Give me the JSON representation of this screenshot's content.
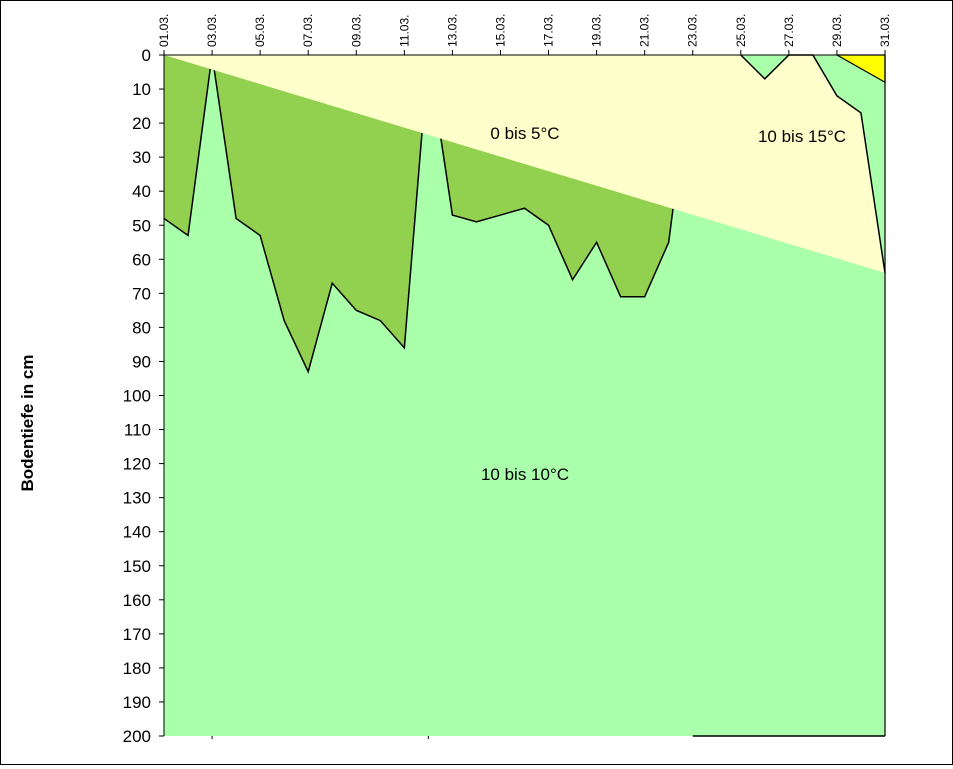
{
  "chart_data": {
    "type": "area",
    "title": "",
    "xlabel": "",
    "ylabel": "Bodentiefe in cm",
    "ylim": [
      0,
      200
    ],
    "y_inverted": true,
    "y_ticks": [
      0,
      10,
      20,
      30,
      40,
      50,
      60,
      70,
      80,
      90,
      100,
      110,
      120,
      130,
      140,
      150,
      160,
      170,
      180,
      190,
      200
    ],
    "x_tick_labels": [
      "01.03.",
      "03.03.",
      "05.03.",
      "07.03.",
      "09.03.",
      "11.03.",
      "13.03.",
      "15.03.",
      "17.03.",
      "19.03.",
      "21.03.",
      "23.03.",
      "25.03.",
      "27.03.",
      "29.03.",
      "31.03."
    ],
    "days": [
      1,
      2,
      3,
      4,
      5,
      6,
      7,
      8,
      9,
      10,
      11,
      12,
      13,
      14,
      15,
      16,
      17,
      18,
      19,
      20,
      21,
      22,
      23,
      24,
      25,
      26,
      27,
      28,
      29,
      30,
      31
    ],
    "grid": false,
    "legend": "none",
    "series": [
      {
        "label": "0 bis 5°C",
        "color": "#92d050",
        "values": [
          48,
          53,
          0,
          48,
          53,
          78,
          93,
          67,
          75,
          78,
          86,
          0,
          47,
          49,
          47,
          45,
          50,
          66,
          55,
          71,
          71,
          55,
          0,
          0,
          0,
          0,
          0,
          0,
          0,
          0,
          0
        ]
      },
      {
        "label": "10 bis 10°C",
        "color": "#aaffaa",
        "values": [
          200,
          200,
          200,
          200,
          200,
          200,
          200,
          200,
          200,
          200,
          200,
          200,
          200,
          200,
          200,
          200,
          200,
          200,
          200,
          200,
          200,
          200,
          200,
          200,
          200,
          200,
          200,
          200,
          200,
          200,
          200
        ]
      },
      {
        "label": "10 bis 15°C",
        "color": "#ffffcc",
        "values": [
          0,
          0,
          0,
          0,
          0,
          0,
          0,
          0,
          0,
          0,
          0,
          0,
          0,
          0,
          0,
          0,
          0,
          0,
          0,
          0,
          0,
          0,
          0,
          0,
          0,
          7,
          0,
          0,
          12,
          17,
          64
        ]
      },
      {
        "color": "#ffff00",
        "values": [
          0,
          0,
          0,
          0,
          0,
          0,
          0,
          0,
          0,
          0,
          0,
          0,
          0,
          0,
          0,
          0,
          0,
          0,
          0,
          0,
          0,
          0,
          0,
          0,
          0,
          0,
          0,
          0,
          0,
          0,
          8
        ]
      }
    ]
  }
}
